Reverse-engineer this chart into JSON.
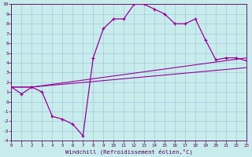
{
  "xlabel": "Windchill (Refroidissement éolien,°C)",
  "xlim": [
    0,
    23
  ],
  "ylim": [
    -4,
    10
  ],
  "xticks": [
    0,
    1,
    2,
    3,
    4,
    5,
    6,
    7,
    8,
    9,
    10,
    11,
    12,
    13,
    14,
    15,
    16,
    17,
    18,
    19,
    20,
    21,
    22,
    23
  ],
  "yticks": [
    -4,
    -3,
    -2,
    -1,
    0,
    1,
    2,
    3,
    4,
    5,
    6,
    7,
    8,
    9,
    10
  ],
  "bg_color": "#c8ecec",
  "line_color": "#990099",
  "line1_x": [
    0,
    1,
    2,
    3,
    4,
    5,
    6,
    7,
    8,
    9,
    10,
    11,
    12,
    13,
    14,
    15,
    16,
    17,
    18,
    19,
    20,
    21,
    22,
    23
  ],
  "line1_y": [
    1.5,
    0.8,
    1.5,
    1.0,
    -1.5,
    -1.8,
    -2.3,
    -3.5,
    4.5,
    7.5,
    8.5,
    8.5,
    10.0,
    10.0,
    9.5,
    9.0,
    8.0,
    8.0,
    8.5,
    6.3,
    4.3,
    4.5,
    4.5,
    4.2
  ],
  "line2_x": [
    0,
    2,
    23
  ],
  "line2_y": [
    1.5,
    1.5,
    3.5
  ],
  "line3_x": [
    0,
    2,
    23
  ],
  "line3_y": [
    1.5,
    1.5,
    4.5
  ]
}
